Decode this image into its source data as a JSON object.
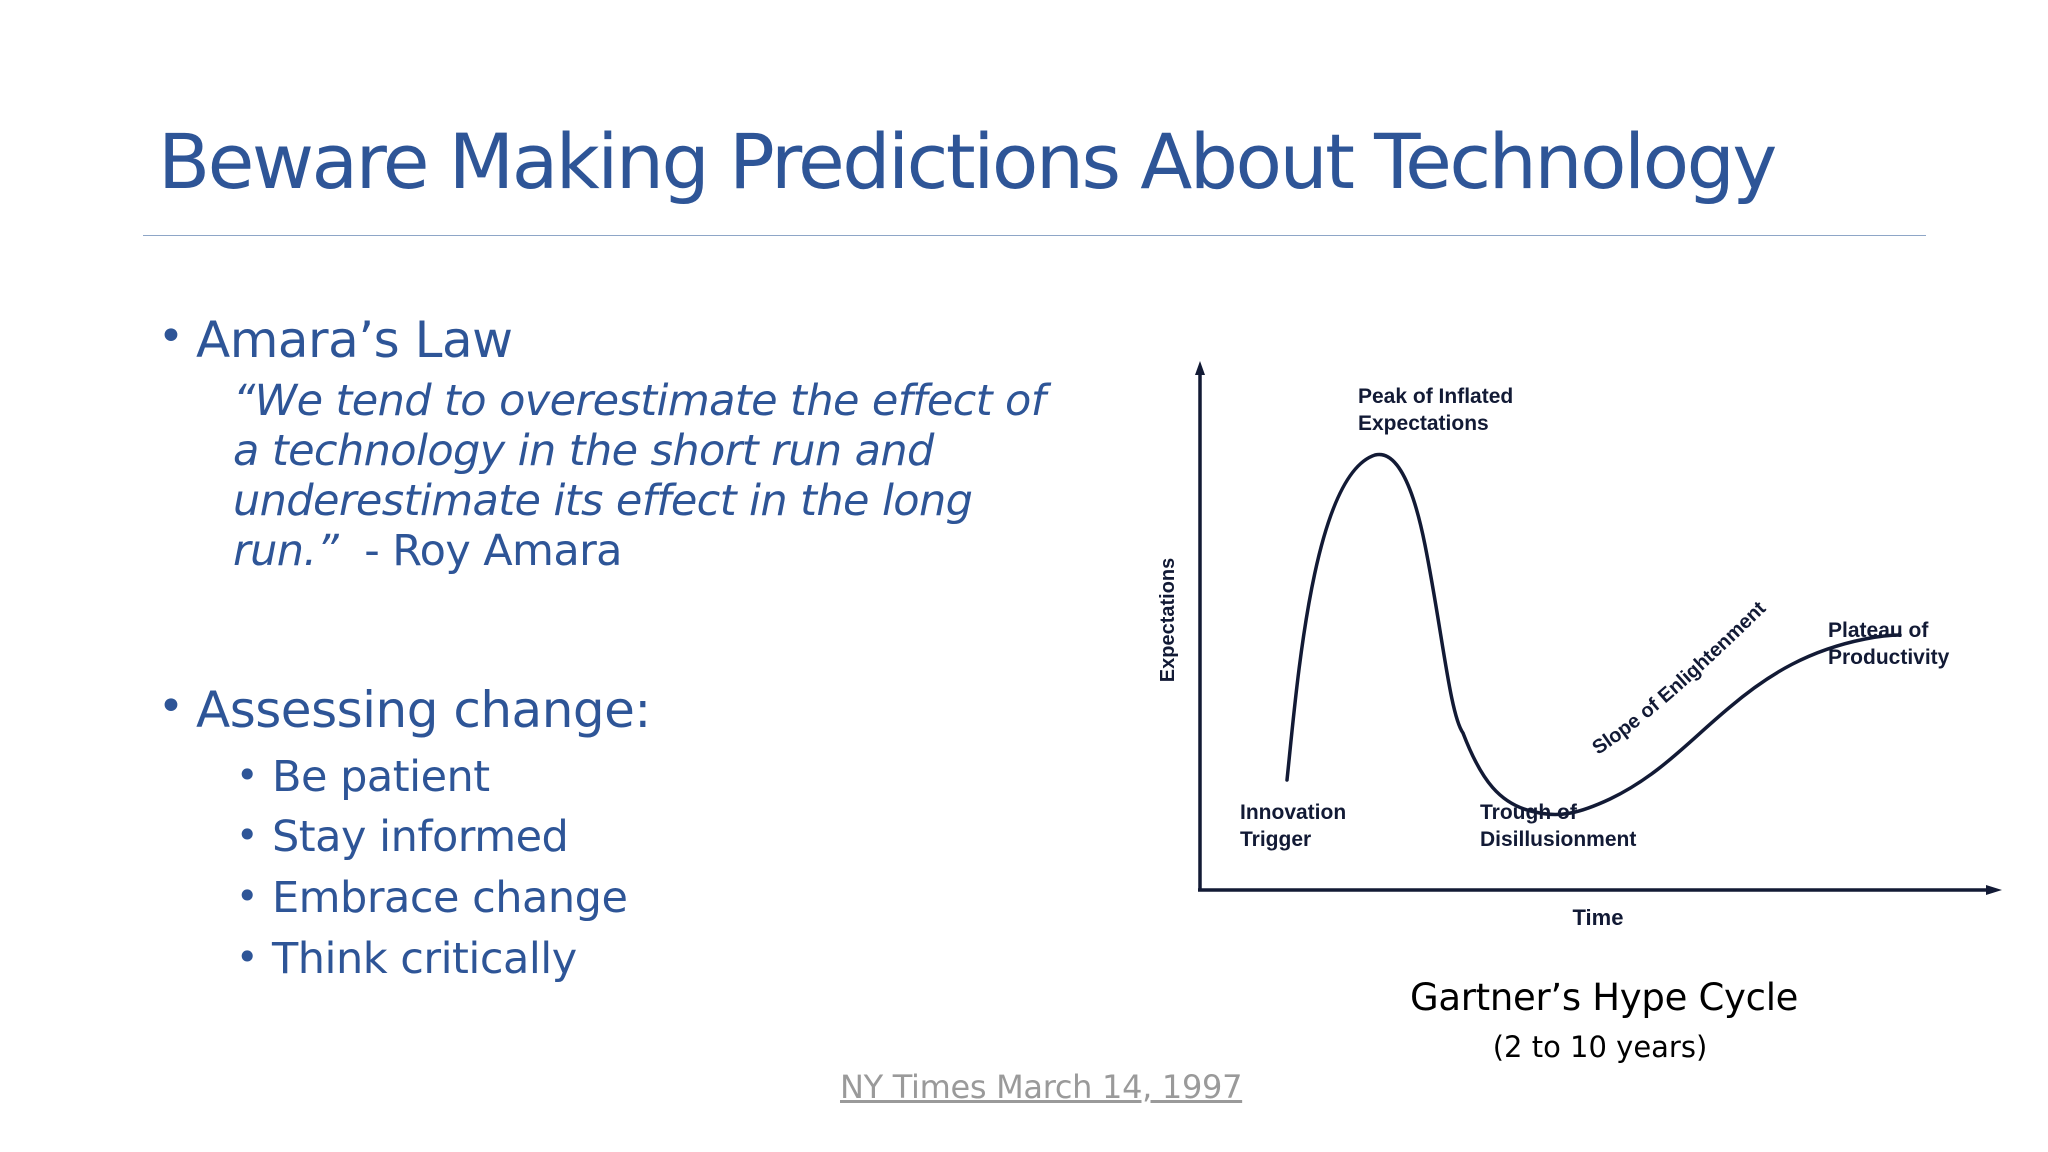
{
  "slide": {
    "title": "Beware Making Predictions About Technology"
  },
  "amara": {
    "heading": "Amara’s Law",
    "quote_italic": "“We tend to overestimate the effect of a technology in the short run and underestimate its effect in the long run.”",
    "attribution": "  - Roy Amara"
  },
  "assessing": {
    "heading": "Assessing change:",
    "items": [
      "Be patient",
      "Stay informed",
      "Embrace change",
      "Think critically"
    ]
  },
  "hype_cycle": {
    "y_axis_label": "Expectations",
    "x_axis_label": "Time",
    "phases": {
      "peak": [
        "Peak of Inflated",
        "Expectations"
      ],
      "trigger": [
        "Innovation",
        "Trigger"
      ],
      "trough": [
        "Trough of",
        "Disillusionment"
      ],
      "slope": "Slope of Enlightenment",
      "plateau": [
        "Plateau of",
        "Productivity"
      ]
    },
    "caption": "Gartner’s Hype Cycle",
    "caption_sub": "(2 to 10 years)",
    "colors": {
      "ink": "#121a35",
      "text": "#2E5597"
    }
  },
  "source": {
    "link_text": "NY Times March 14, 1997"
  }
}
